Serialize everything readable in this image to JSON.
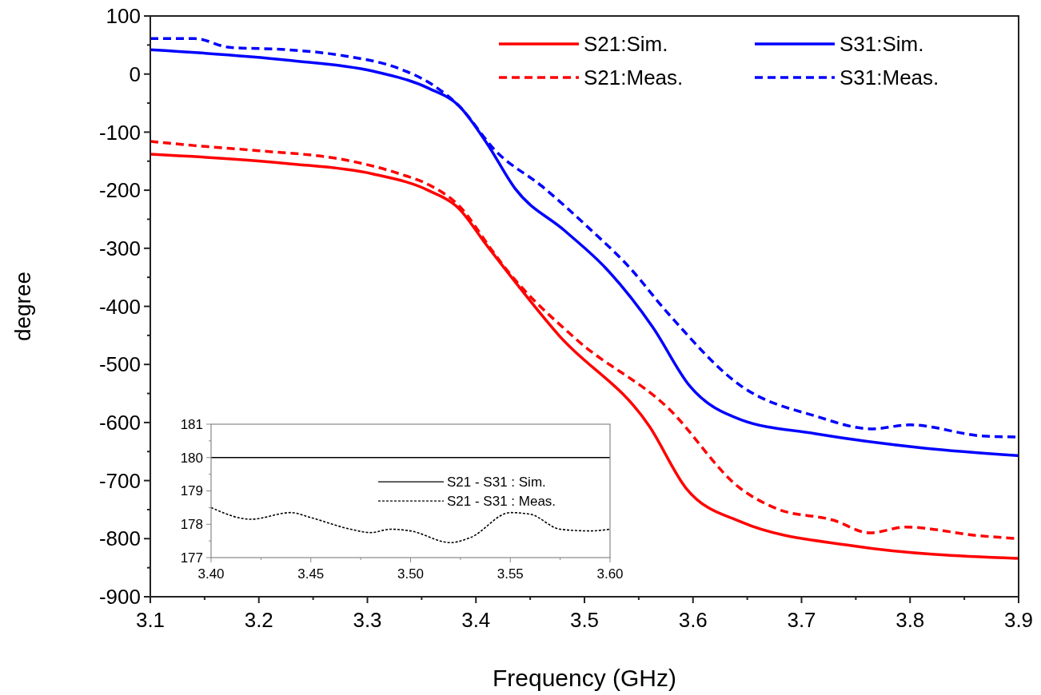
{
  "chart_data": [
    {
      "type": "line",
      "xlabel": "Frequency (GHz)",
      "ylabel": "degree",
      "xlim": [
        3.1,
        3.9
      ],
      "xticks": [
        3.1,
        3.2,
        3.3,
        3.4,
        3.5,
        3.6,
        3.7,
        3.8,
        3.9
      ],
      "ylim": [
        -900,
        100
      ],
      "yticks": [
        -900,
        -800,
        -700,
        -600,
        -500,
        -400,
        -300,
        -200,
        -100,
        0,
        100
      ],
      "legend": "top right",
      "grid": false,
      "series": [
        {
          "name": "S21:Sim.",
          "color": "#ff0000",
          "line_style": "solid",
          "x": [
            3.1,
            3.226,
            3.305,
            3.357,
            3.384,
            3.41,
            3.476,
            3.56,
            3.594,
            3.644,
            3.746,
            3.9
          ],
          "values": [
            -138,
            -154,
            -172,
            -201,
            -231,
            -295,
            -449,
            -607,
            -714,
            -771,
            -812,
            -834
          ]
        },
        {
          "name": "S21:Meas.",
          "color": "#ff0000",
          "line_style": "dashed",
          "x": [
            3.1,
            3.14,
            3.2,
            3.28,
            3.33,
            3.357,
            3.384,
            3.415,
            3.425,
            3.492,
            3.577,
            3.644,
            3.678,
            3.729,
            3.763,
            3.796,
            3.864,
            3.9
          ],
          "values": [
            -116,
            -123,
            -132,
            -148,
            -172,
            -191,
            -226,
            -304,
            -329,
            -456,
            -575,
            -714,
            -749,
            -768,
            -790,
            -780,
            -795,
            -800
          ]
        },
        {
          "name": "S31:Sim.",
          "color": "#0000ff",
          "line_style": "solid",
          "x": [
            3.1,
            3.226,
            3.305,
            3.357,
            3.384,
            3.41,
            3.436,
            3.482,
            3.52,
            3.563,
            3.597,
            3.644,
            3.712,
            3.813,
            3.9
          ],
          "values": [
            42,
            24,
            5,
            -25,
            -54,
            -119,
            -197,
            -270,
            -335,
            -436,
            -537,
            -595,
            -619,
            -644,
            -657
          ]
        },
        {
          "name": "S31:Meas.",
          "color": "#0000ff",
          "line_style": "dashed",
          "x": [
            3.1,
            3.141,
            3.173,
            3.226,
            3.28,
            3.33,
            3.357,
            3.384,
            3.418,
            3.462,
            3.504,
            3.54,
            3.577,
            3.645,
            3.713,
            3.765,
            3.8,
            3.866,
            3.9
          ],
          "values": [
            61,
            61,
            46,
            42,
            31,
            9,
            -15,
            -54,
            -132,
            -195,
            -265,
            -330,
            -412,
            -538,
            -589,
            -611,
            -604,
            -623,
            -625
          ]
        }
      ]
    },
    {
      "type": "line",
      "xlim": [
        3.4,
        3.6
      ],
      "xticks": [
        {
          "value": 3.4,
          "label": "3.40"
        },
        {
          "value": 3.45,
          "label": "3.45"
        },
        {
          "value": 3.5,
          "label": "3.50"
        },
        {
          "value": 3.55,
          "label": "3.55"
        },
        {
          "value": 3.6,
          "label": "3.60"
        }
      ],
      "ylim": [
        177,
        181
      ],
      "yticks": [
        177,
        178,
        179,
        180,
        181
      ],
      "legend": "right",
      "grid": false,
      "series": [
        {
          "name": "S21 - S31 : Sim.",
          "color": "#000000",
          "line_style": "solid",
          "x": [
            3.4,
            3.6
          ],
          "values": [
            180,
            180
          ]
        },
        {
          "name": "S21 - S31 : Meas.",
          "color": "#000000",
          "line_style": "dotted",
          "x": [
            3.4,
            3.42,
            3.44,
            3.45,
            3.47,
            3.48,
            3.49,
            3.5,
            3.52,
            3.53,
            3.55,
            3.56,
            3.575,
            3.59,
            3.6
          ],
          "values": [
            178.5,
            178.15,
            178.35,
            178.2,
            177.85,
            177.75,
            177.85,
            177.8,
            177.45,
            177.6,
            178.35,
            178.3,
            177.85,
            177.8,
            177.85
          ]
        }
      ]
    }
  ]
}
